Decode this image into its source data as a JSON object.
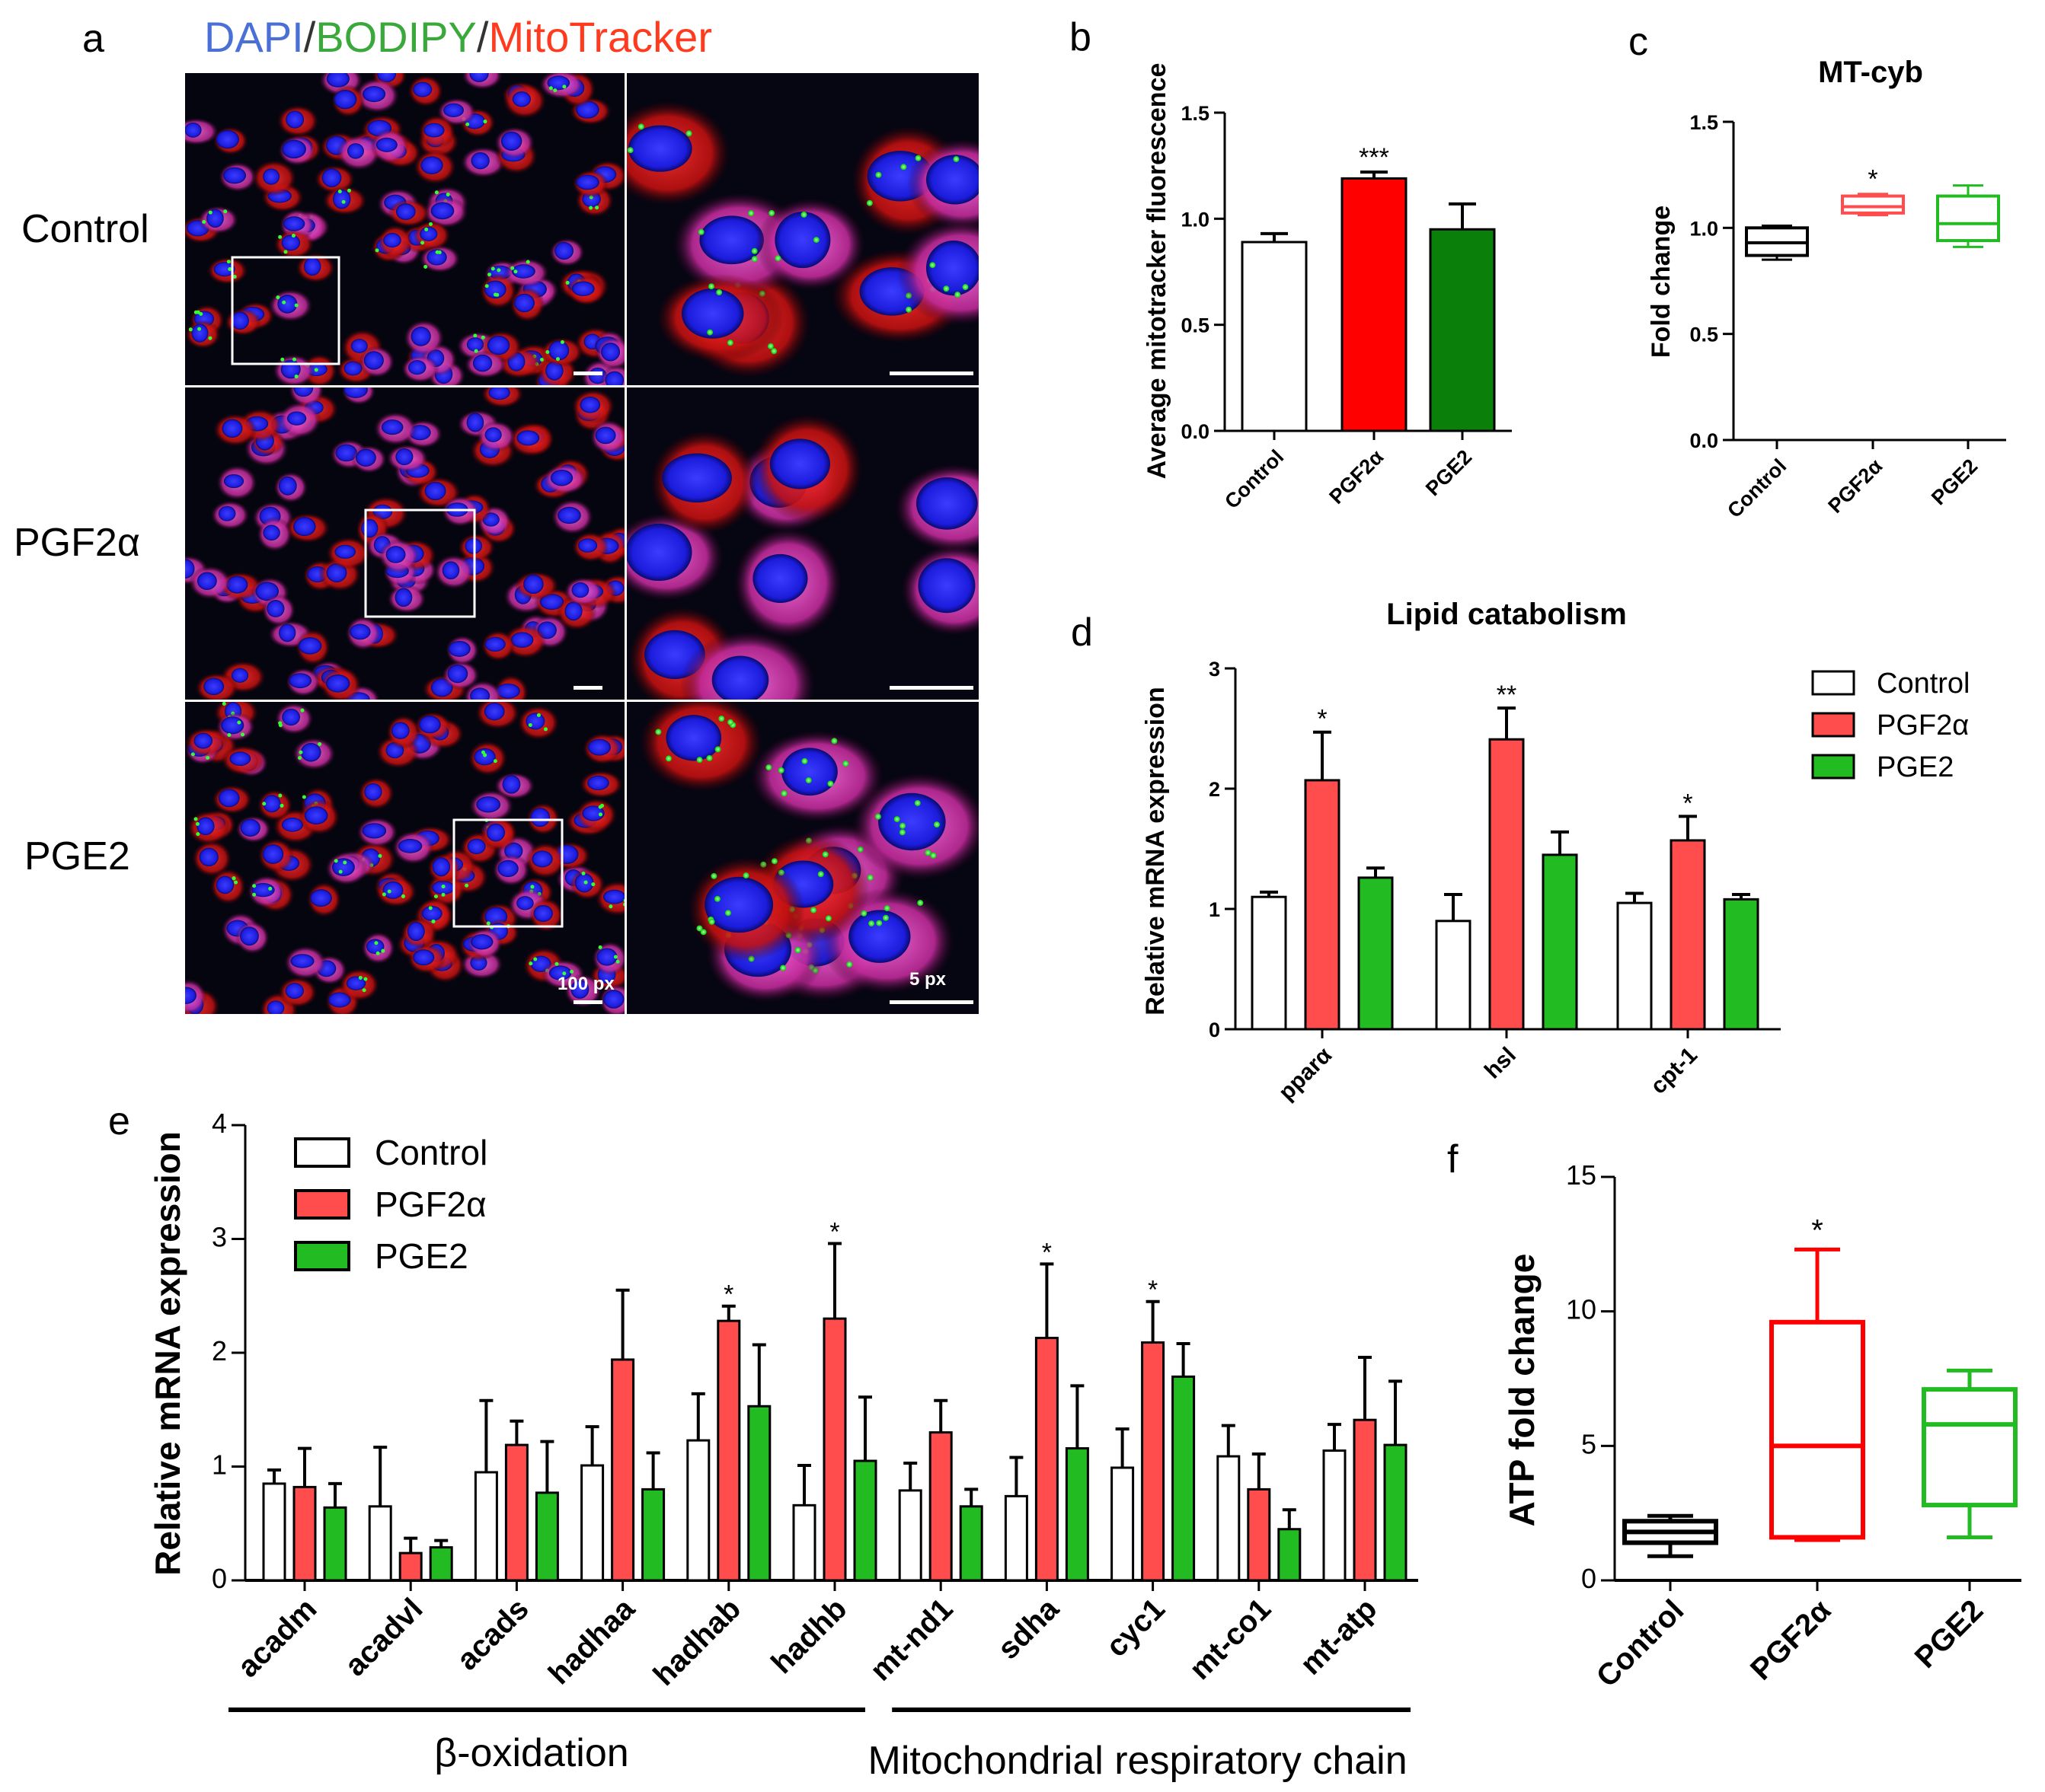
{
  "colors": {
    "control": "#ffffff",
    "pgf2a": "#ff0000",
    "pgf2a_light": "#ff4d4d",
    "pge2": "#0a7f0a",
    "pge2_light": "#22bb22",
    "dapi": "#4a6fd6",
    "bodipy": "#3aa83a",
    "mitotracker": "#ff3b1f"
  },
  "panel_a": {
    "letter": "a",
    "stain_dapi": "DAPI",
    "stain_sep1": "/",
    "stain_bodipy": "BODIPY",
    "stain_sep2": "/",
    "stain_mito": "MitoTracker",
    "rows": [
      "Control",
      "PGF2α",
      "PGE2"
    ],
    "scale_left": "100 px",
    "scale_right": "5 px"
  },
  "chart_data": [
    {
      "id": "b",
      "letter": "b",
      "type": "bar",
      "title": "",
      "ylabel": "Average mitotracker fluorescence",
      "ylim": [
        0,
        1.5
      ],
      "yticks": [
        "0.0",
        "0.5",
        "1.0",
        "1.5"
      ],
      "categories": [
        "Control",
        "PGF2α",
        "PGE2"
      ],
      "values": [
        0.89,
        1.19,
        0.95
      ],
      "errors": [
        0.04,
        0.03,
        0.12
      ],
      "significance": [
        "",
        "***",
        ""
      ]
    },
    {
      "id": "c",
      "letter": "c",
      "type": "box",
      "title": "MT-cyb",
      "ylabel": "Fold change",
      "ylim": [
        0,
        1.5
      ],
      "yticks": [
        "0.0",
        "0.5",
        "1.0",
        "1.5"
      ],
      "categories": [
        "Control",
        "PGF2α",
        "PGE2"
      ],
      "boxes": [
        {
          "min": 0.85,
          "q1": 0.87,
          "median": 0.93,
          "q3": 1.0,
          "max": 1.01
        },
        {
          "min": 1.06,
          "q1": 1.07,
          "median": 1.1,
          "q3": 1.15,
          "max": 1.16
        },
        {
          "min": 0.91,
          "q1": 0.94,
          "median": 1.02,
          "q3": 1.15,
          "max": 1.2
        }
      ],
      "significance": [
        "",
        "*",
        ""
      ]
    },
    {
      "id": "d",
      "letter": "d",
      "type": "bar",
      "title": "Lipid catabolism",
      "ylabel": "Relative mRNA expression",
      "ylim": [
        0,
        3
      ],
      "yticks": [
        "0",
        "1",
        "2",
        "3"
      ],
      "categories": [
        "pparα",
        "hsl",
        "cpt-1"
      ],
      "series": [
        {
          "name": "Control",
          "values": [
            1.1,
            0.9,
            1.05
          ],
          "errors": [
            0.04,
            0.22,
            0.08
          ]
        },
        {
          "name": "PGF2α",
          "values": [
            2.07,
            2.41,
            1.57
          ],
          "errors": [
            0.4,
            0.26,
            0.2
          ]
        },
        {
          "name": "PGE2",
          "values": [
            1.26,
            1.45,
            1.08
          ],
          "errors": [
            0.08,
            0.19,
            0.04
          ]
        }
      ],
      "significance": [
        [
          "",
          "*",
          ""
        ],
        [
          "",
          "**",
          ""
        ],
        [
          "",
          "*",
          ""
        ]
      ]
    },
    {
      "id": "e",
      "letter": "e",
      "type": "bar",
      "title": "",
      "ylabel": "Relative mRNA expression",
      "ylim": [
        0,
        4
      ],
      "yticks": [
        "0",
        "1",
        "2",
        "3",
        "4"
      ],
      "categories": [
        "acadm",
        "acadvl",
        "acads",
        "hadhaa",
        "hadhab",
        "hadhb",
        "mt-nd1",
        "sdha",
        "cyc1",
        "mt-co1",
        "mt-atp"
      ],
      "series": [
        {
          "name": "Control",
          "values": [
            0.85,
            0.65,
            0.95,
            1.01,
            1.23,
            0.66,
            0.79,
            0.74,
            0.99,
            1.09,
            1.14
          ],
          "errors": [
            0.12,
            0.52,
            0.63,
            0.34,
            0.41,
            0.35,
            0.24,
            0.34,
            0.34,
            0.27,
            0.23
          ]
        },
        {
          "name": "PGF2α",
          "values": [
            0.82,
            0.24,
            1.19,
            1.94,
            2.28,
            2.3,
            1.3,
            2.13,
            2.09,
            0.8,
            1.41
          ],
          "errors": [
            0.34,
            0.13,
            0.21,
            0.61,
            0.13,
            0.66,
            0.28,
            0.65,
            0.36,
            0.31,
            0.55
          ]
        },
        {
          "name": "PGE2",
          "values": [
            0.64,
            0.29,
            0.77,
            0.8,
            1.53,
            1.05,
            0.65,
            1.16,
            1.79,
            0.45,
            1.19
          ],
          "errors": [
            0.21,
            0.06,
            0.45,
            0.32,
            0.54,
            0.56,
            0.15,
            0.55,
            0.29,
            0.17,
            0.56
          ]
        }
      ],
      "significance": [
        "",
        "",
        "",
        "",
        "*",
        "*",
        "",
        "*",
        "*",
        "",
        ""
      ],
      "groups": [
        {
          "label": "β-oxidation",
          "from": 0,
          "to": 5
        },
        {
          "label": "Mitochondrial respiratory chain",
          "from": 6,
          "to": 10
        }
      ]
    },
    {
      "id": "f",
      "letter": "f",
      "type": "box",
      "title": "",
      "ylabel": "ATP fold change",
      "ylim": [
        0,
        15
      ],
      "yticks": [
        "0",
        "5",
        "10",
        "15"
      ],
      "categories": [
        "Control",
        "PGF2α",
        "PGE2"
      ],
      "boxes": [
        {
          "min": 0.9,
          "q1": 1.4,
          "median": 1.8,
          "q3": 2.2,
          "max": 2.4
        },
        {
          "min": 1.5,
          "q1": 1.6,
          "median": 5.0,
          "q3": 9.6,
          "max": 12.3
        },
        {
          "min": 1.6,
          "q1": 2.8,
          "median": 5.8,
          "q3": 7.1,
          "max": 7.8
        }
      ],
      "significance": [
        "",
        "*",
        ""
      ]
    }
  ],
  "legend": [
    "Control",
    "PGF2α",
    "PGE2"
  ]
}
